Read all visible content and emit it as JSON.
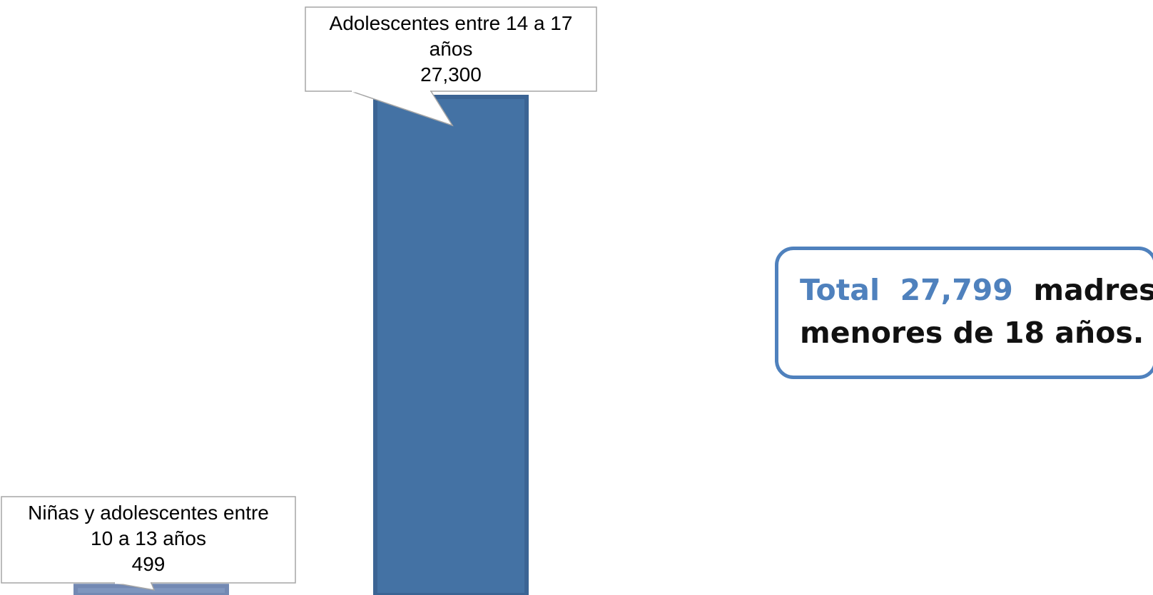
{
  "chart_data": {
    "type": "bar",
    "categories": [
      "Niñas y adolescentes entre 10 a 13 años",
      "Adolescentes entre 14 a 17 años"
    ],
    "values": [
      499,
      27300
    ],
    "ylim": [
      0,
      28000
    ],
    "grid": false,
    "legend": "none",
    "data_labels": [
      [
        "Niñas y adolescentes entre",
        "10 a 13 años",
        "499"
      ],
      [
        "Adolescentes entre 14 a 17",
        "años",
        "27,300"
      ]
    ],
    "bar_colors": [
      "#7f96be",
      "#4472a4"
    ]
  },
  "summary": {
    "total_label": "Total",
    "total_value": "27,799",
    "line1_rest": "madres",
    "line2": "menores de 18 años."
  },
  "colors": {
    "accent": "#4f81bd",
    "bar_primary": "#4472a4",
    "bar_secondary": "#7f96be"
  }
}
